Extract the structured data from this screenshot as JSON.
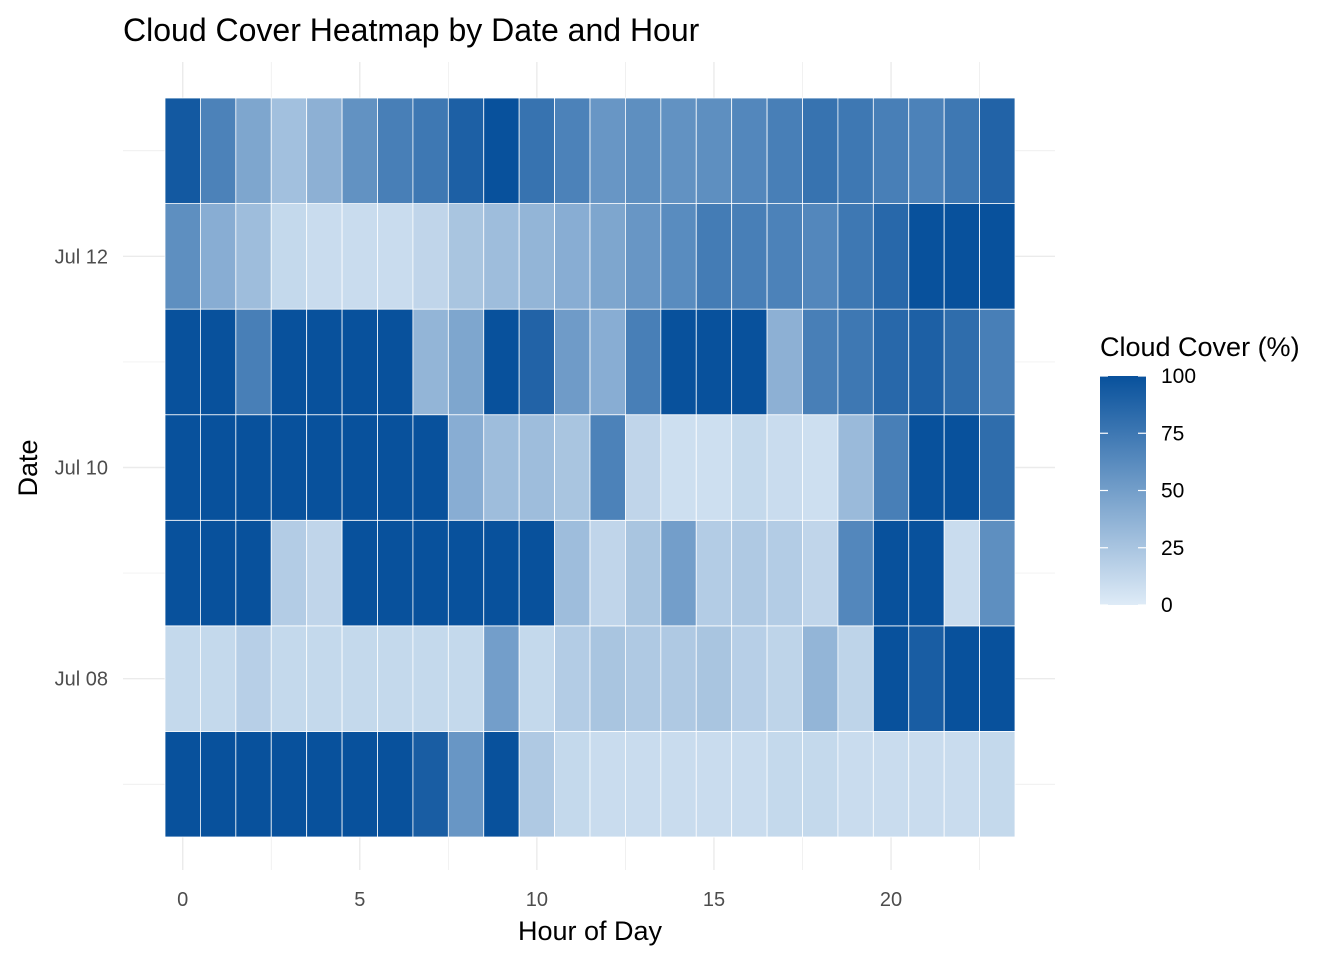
{
  "chart_data": {
    "type": "heatmap",
    "title": "Cloud Cover Heatmap by Date and Hour",
    "xlabel": "Hour of Day",
    "ylabel": "Date",
    "x": [
      0,
      1,
      2,
      3,
      4,
      5,
      6,
      7,
      8,
      9,
      10,
      11,
      12,
      13,
      14,
      15,
      16,
      17,
      18,
      19,
      20,
      21,
      22,
      23
    ],
    "x_ticks": [
      0,
      5,
      10,
      15,
      20
    ],
    "x_tick_labels": [
      "0",
      "5",
      "10",
      "15",
      "20"
    ],
    "y": [
      "2024-07-07",
      "2024-07-08",
      "2024-07-09",
      "2024-07-10",
      "2024-07-11",
      "2024-07-12",
      "2024-07-13"
    ],
    "y_tick_labels": [
      "Jul 08",
      "Jul 10",
      "Jul 12"
    ],
    "y_tick_dates": [
      "2024-07-08",
      "2024-07-10",
      "2024-07-12"
    ],
    "values": [
      [
        100,
        100,
        100,
        100,
        100,
        100,
        100,
        92,
        55,
        100,
        22,
        12,
        10,
        10,
        10,
        10,
        10,
        12,
        12,
        10,
        10,
        10,
        10,
        12
      ],
      [
        12,
        12,
        18,
        12,
        12,
        12,
        12,
        12,
        12,
        50,
        12,
        20,
        25,
        22,
        22,
        25,
        18,
        15,
        35,
        15,
        100,
        92,
        100,
        100
      ],
      [
        100,
        100,
        100,
        20,
        14,
        100,
        100,
        100,
        100,
        100,
        100,
        30,
        14,
        25,
        50,
        20,
        22,
        20,
        14,
        65,
        100,
        100,
        10,
        60
      ],
      [
        100,
        100,
        100,
        100,
        100,
        100,
        100,
        100,
        40,
        30,
        30,
        25,
        68,
        14,
        8,
        8,
        12,
        10,
        8,
        32,
        70,
        100,
        100,
        82
      ],
      [
        100,
        100,
        70,
        100,
        100,
        100,
        100,
        35,
        45,
        100,
        88,
        52,
        40,
        70,
        100,
        100,
        100,
        38,
        70,
        75,
        85,
        90,
        82,
        70
      ],
      [
        60,
        40,
        30,
        12,
        10,
        10,
        10,
        14,
        25,
        30,
        35,
        40,
        45,
        55,
        62,
        72,
        70,
        68,
        65,
        75,
        85,
        100,
        100,
        100
      ],
      [
        95,
        68,
        45,
        28,
        38,
        58,
        70,
        75,
        90,
        100,
        78,
        68,
        55,
        60,
        58,
        60,
        65,
        70,
        78,
        75,
        70,
        68,
        75,
        88
      ]
    ],
    "zlim": [
      0,
      100
    ],
    "legend": {
      "title": "Cloud Cover (%)",
      "breaks": [
        100,
        75,
        50,
        25,
        0
      ],
      "labels": [
        "100",
        "75",
        "50",
        "25",
        "0"
      ],
      "position": "right"
    },
    "colors": {
      "low": "#deebf7",
      "high": "#08519c",
      "grid": "#ebebeb"
    },
    "grid": true
  }
}
